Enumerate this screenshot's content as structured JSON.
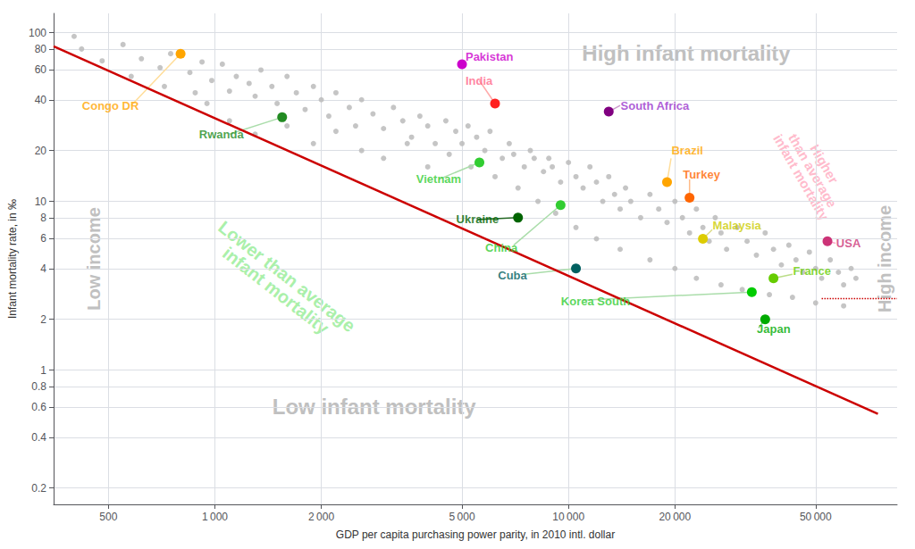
{
  "chart_data": {
    "type": "scatter",
    "xlabel": "GDP per capita purchasing power parity, in 2010 intl. dollar",
    "ylabel": "Infant mortality rate, in ‰",
    "log": true,
    "grid": true,
    "xlim": [
      350,
      85000
    ],
    "ylim": [
      0.16,
      130
    ],
    "xticks": [
      500,
      {
        "value": 1000,
        "label": "1 000"
      },
      {
        "value": 2000,
        "label": "2 000"
      },
      {
        "value": 5000,
        "label": "5 000"
      },
      {
        "value": 10000,
        "label": "10 000"
      },
      {
        "value": 20000,
        "label": "20 000"
      },
      {
        "value": 50000,
        "label": "50 000"
      }
    ],
    "yticks": [
      0.2,
      0.4,
      0.6,
      0.8,
      1,
      2,
      4,
      6,
      8,
      10,
      20,
      40,
      60,
      80,
      100
    ],
    "series": [
      {
        "type": "scatter",
        "color": "#bbbbbb",
        "x": [
          400,
          420,
          480,
          550,
          580,
          620,
          700,
          720,
          750,
          850,
          880,
          920,
          950,
          980,
          1050,
          1100,
          1150,
          1250,
          1300,
          1350,
          1450,
          1500,
          1600,
          1700,
          1800,
          1900,
          2000,
          2100,
          2200,
          2400,
          2500,
          2600,
          2800,
          3000,
          3200,
          3400,
          3600,
          3800,
          4000,
          4200,
          4500,
          4800,
          5000,
          5200,
          5500,
          5800,
          6000,
          6500,
          6800,
          7000,
          7500,
          7800,
          8000,
          8500,
          8800,
          9000,
          9500,
          10000,
          10500,
          11000,
          11500,
          12000,
          12500,
          13000,
          13500,
          14000,
          14500,
          15000,
          16000,
          17000,
          18000,
          19000,
          20000,
          21000,
          22000,
          23000,
          24000,
          25000,
          26000,
          27000,
          28000,
          30000,
          32000,
          34000,
          36000,
          38000,
          40000,
          42000,
          44000,
          46000,
          48000,
          50000,
          52000,
          55000,
          58000,
          60000,
          63000,
          65000,
          1100,
          1300,
          1600,
          1900,
          2200,
          2600,
          3000,
          3500,
          4000,
          4600,
          5300,
          6200,
          7200,
          8200,
          9200,
          10500,
          12000,
          14000,
          17000,
          20000,
          23000,
          27000,
          31000,
          37000,
          43000,
          50000,
          60000
        ],
        "values": [
          95,
          80,
          68,
          85,
          55,
          70,
          62,
          48,
          75,
          58,
          44,
          67,
          38,
          52,
          65,
          45,
          55,
          50,
          42,
          60,
          48,
          38,
          55,
          44,
          35,
          48,
          40,
          32,
          44,
          36,
          28,
          40,
          33,
          27,
          36,
          30,
          24,
          32,
          28,
          22,
          30,
          26,
          22,
          28,
          24,
          20,
          26,
          18,
          22,
          19,
          16,
          20,
          18,
          15,
          18,
          16,
          13,
          17,
          14,
          12,
          16,
          13,
          10,
          14,
          11,
          9,
          12,
          10,
          8,
          11,
          9,
          7.5,
          10,
          8,
          6.5,
          9,
          7,
          5.8,
          8,
          6.5,
          5.2,
          7,
          5.8,
          4.8,
          6.5,
          5.2,
          4.2,
          5.5,
          4.5,
          3.8,
          5.0,
          4.0,
          3.5,
          4.5,
          3.8,
          3.2,
          4.0,
          3.5,
          30,
          25,
          28,
          22,
          26,
          20,
          18,
          22,
          16,
          19,
          16,
          14,
          12,
          10,
          8.5,
          7,
          6,
          5.2,
          4.5,
          4.0,
          3.5,
          3.2,
          3.0,
          2.8,
          2.7,
          2.5,
          2.4
        ]
      },
      {
        "type": "line",
        "color": "#cc0000",
        "x": [
          350,
          75000
        ],
        "values": [
          83,
          0.55
        ]
      },
      {
        "type": "line",
        "color": "#cc0000",
        "line_style": "dotted",
        "x": [
          52000,
          85000
        ],
        "values": [
          2.65,
          2.65
        ]
      },
      {
        "type": "scatter",
        "color": "#ffa500",
        "x": [
          800
        ],
        "values": [
          75.0
        ]
      },
      {
        "type": "scatter",
        "color": "#228B22",
        "x": [
          1550
        ],
        "values": [
          31.5
        ]
      },
      {
        "type": "scatter",
        "color": "#cc00cc",
        "x": [
          5000
        ],
        "values": [
          65.0
        ]
      },
      {
        "type": "scatter",
        "color": "#ff2020",
        "x": [
          6200
        ],
        "values": [
          38.0
        ]
      },
      {
        "type": "scatter",
        "color": "#800080",
        "x": [
          13000
        ],
        "values": [
          34.0
        ]
      },
      {
        "type": "scatter",
        "color": "#32CD32",
        "x": [
          5600
        ],
        "values": [
          17.0
        ]
      },
      {
        "type": "scatter",
        "color": "#006400",
        "x": [
          7200
        ],
        "values": [
          8.0
        ]
      },
      {
        "type": "scatter",
        "color": "#32CD32",
        "x": [
          9500
        ],
        "values": [
          9.5
        ]
      },
      {
        "type": "scatter",
        "color": "#006060",
        "x": [
          10500
        ],
        "values": [
          4.0
        ]
      },
      {
        "type": "scatter",
        "color": "#ffa500",
        "x": [
          19000
        ],
        "values": [
          13.0
        ]
      },
      {
        "type": "scatter",
        "color": "#ff6600",
        "x": [
          22000
        ],
        "values": [
          10.5
        ]
      },
      {
        "type": "scatter",
        "color": "#00cc00",
        "x": [
          33000
        ],
        "values": [
          2.9
        ]
      },
      {
        "type": "scatter",
        "color": "#ddcc00",
        "x": [
          24000
        ],
        "values": [
          6.0
        ]
      },
      {
        "type": "scatter",
        "color": "#00aa00",
        "x": [
          36000
        ],
        "values": [
          2.0
        ]
      },
      {
        "type": "scatter",
        "color": "#66cc00",
        "x": [
          38000
        ],
        "values": [
          3.5
        ]
      },
      {
        "type": "scatter",
        "color": "#cc3377",
        "x": [
          54000
        ],
        "values": [
          5.8
        ]
      }
    ],
    "annotations": [
      {
        "text": "Congo DR",
        "x": 420,
        "y": 37,
        "color": "#ffa500",
        "connector": {
          "x": [
            800,
            580
          ],
          "y": [
            75.0,
            37
          ],
          "color": "#ffdd99"
        }
      },
      {
        "text": "Rwanda",
        "x": 900,
        "y": 25,
        "color": "#228B22",
        "connector": {
          "x": [
            1550,
            1100
          ],
          "y": [
            31.5,
            25
          ],
          "color": "#aaddaa"
        }
      },
      {
        "text": "Pakistan",
        "x": 5100,
        "y": 72,
        "color": "#cc00cc",
        "connector": {
          "x": [
            5000,
            5100
          ],
          "y": [
            65.0,
            68
          ],
          "color": "#dd99dd"
        }
      },
      {
        "text": "India",
        "x": 5100,
        "y": 52,
        "color": "#ff6688",
        "connector": {
          "x": [
            6200,
            5600
          ],
          "y": [
            38.0,
            52
          ],
          "color": "#ffaaaa"
        }
      },
      {
        "text": "South Africa",
        "x": 14000,
        "y": 37,
        "color": "#9933cc",
        "connector": {
          "x": [
            13000,
            14000
          ],
          "y": [
            34.0,
            37
          ],
          "color": "#cc99cc"
        }
      },
      {
        "text": "Vietnam",
        "x": 3700,
        "y": 13.5,
        "color": "#32CD32",
        "connector": {
          "x": [
            5600,
            4300
          ],
          "y": [
            17.0,
            13.5
          ],
          "color": "#aaddaa"
        }
      },
      {
        "text": "Ukraine",
        "x": 4800,
        "y": 7.8,
        "color": "#006400",
        "connector": {
          "x": [
            7200,
            5500
          ],
          "y": [
            8.0,
            7.8
          ],
          "color": "#226622"
        }
      },
      {
        "text": "China",
        "x": 5800,
        "y": 5.3,
        "color": "#32CD32",
        "connector": {
          "x": [
            9500,
            7000
          ],
          "y": [
            9.5,
            5.5
          ],
          "color": "#aaddaa"
        }
      },
      {
        "text": "Cuba",
        "x": 6300,
        "y": 3.65,
        "color": "#006060",
        "connector": {
          "x": [
            10500,
            7500
          ],
          "y": [
            4.0,
            3.7
          ],
          "color": "#aaddaa"
        }
      },
      {
        "text": "Brazil",
        "x": 19500,
        "y": 20.0,
        "color": "#ffa500",
        "connector": {
          "x": [
            19000,
            19500
          ],
          "y": [
            13.0,
            18
          ],
          "color": "#ffdd99"
        }
      },
      {
        "text": "Turkey",
        "x": 21000,
        "y": 14.5,
        "color": "#ff6600",
        "connector": {
          "x": [
            22000,
            22000
          ],
          "y": [
            10.5,
            13.5
          ],
          "color": "#ffbb88"
        }
      },
      {
        "text": "Korea South",
        "x": 9500,
        "y": 2.55,
        "color": "#32CD32",
        "connector": {
          "x": [
            33000,
            11000
          ],
          "y": [
            2.9,
            2.6
          ],
          "color": "#aaddaa"
        }
      },
      {
        "text": "Malaysia",
        "x": 25500,
        "y": 7.2,
        "color": "#cccc00",
        "connector": {
          "x": [
            24000,
            25500
          ],
          "y": [
            6.0,
            6.8
          ],
          "color": "#dddd88"
        }
      },
      {
        "text": "Japan",
        "x": 34000,
        "y": 1.75,
        "color": "#00aa00",
        "connector": {
          "x": [
            36000,
            34500
          ],
          "y": [
            2.0,
            1.78
          ],
          "color": "#88cc88"
        }
      },
      {
        "text": "France",
        "x": 43000,
        "y": 3.85,
        "color": "#66cc00",
        "connector": {
          "x": [
            38000,
            43000
          ],
          "y": [
            3.5,
            3.7
          ],
          "color": "#bbdd88"
        }
      },
      {
        "text": "USA",
        "x": 57000,
        "y": 5.65,
        "color": "#cc3377",
        "connector": {
          "x": [
            54000,
            57000
          ],
          "y": [
            5.8,
            5.65
          ],
          "color": "#ffaacc"
        }
      },
      {
        "text": "Low income",
        "color": "#c0c0c0"
      },
      {
        "text": "High income",
        "color": "#c0c0c0"
      },
      {
        "text": "Low infant mortality",
        "color": "#c0c0c0"
      },
      {
        "text": "High infant mortality",
        "color": "#c0c0c0"
      },
      {
        "text": "Lower than average\ninfant mortality",
        "color": "#aaf0aa"
      },
      {
        "text": "Higher\nthan average\ninfant mortality",
        "color": "#ffbbcc"
      }
    ]
  }
}
